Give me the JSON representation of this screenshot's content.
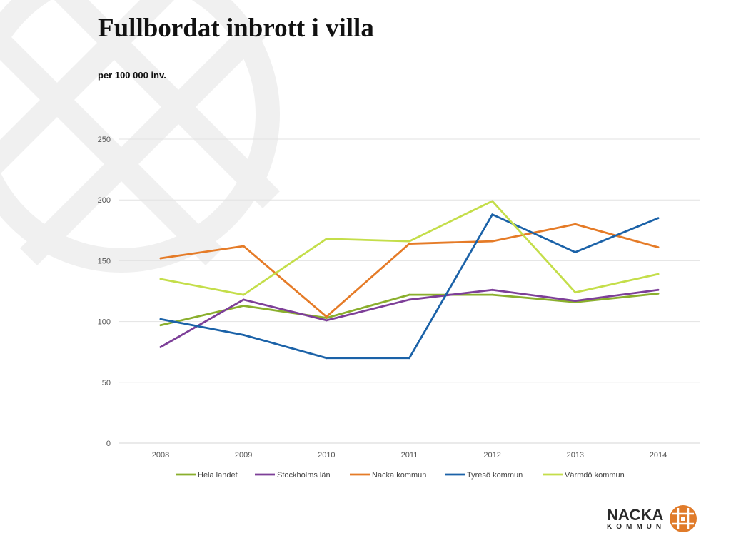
{
  "slide": {
    "title": "Fullbordat inbrott i villa",
    "subtitle": "per 100 000 inv."
  },
  "logo": {
    "name": "NACKA",
    "sub": "KOMMUN",
    "color": "#E07B2A"
  },
  "chart_data": {
    "type": "line",
    "x": [
      "2008",
      "2009",
      "2010",
      "2011",
      "2012",
      "2013",
      "2014"
    ],
    "ylim": [
      0,
      250
    ],
    "yticks": [
      0,
      50,
      100,
      150,
      200,
      250
    ],
    "grid": true,
    "legend_position": "bottom",
    "series": [
      {
        "name": "Hela landet",
        "color": "#8AAF2D",
        "values": [
          97,
          113,
          103,
          122,
          122,
          116,
          123
        ]
      },
      {
        "name": "Stockholms län",
        "color": "#7D3F98",
        "values": [
          79,
          118,
          101,
          118,
          126,
          117,
          126
        ]
      },
      {
        "name": "Nacka kommun",
        "color": "#E57B27",
        "values": [
          152,
          162,
          104,
          164,
          166,
          180,
          161
        ]
      },
      {
        "name": "Tyresö kommun",
        "color": "#1B62A8",
        "values": [
          102,
          89,
          70,
          70,
          188,
          157,
          185
        ]
      },
      {
        "name": "Värmdö kommun",
        "color": "#C4DE4A",
        "values": [
          135,
          122,
          168,
          166,
          199,
          124,
          139
        ]
      }
    ]
  }
}
